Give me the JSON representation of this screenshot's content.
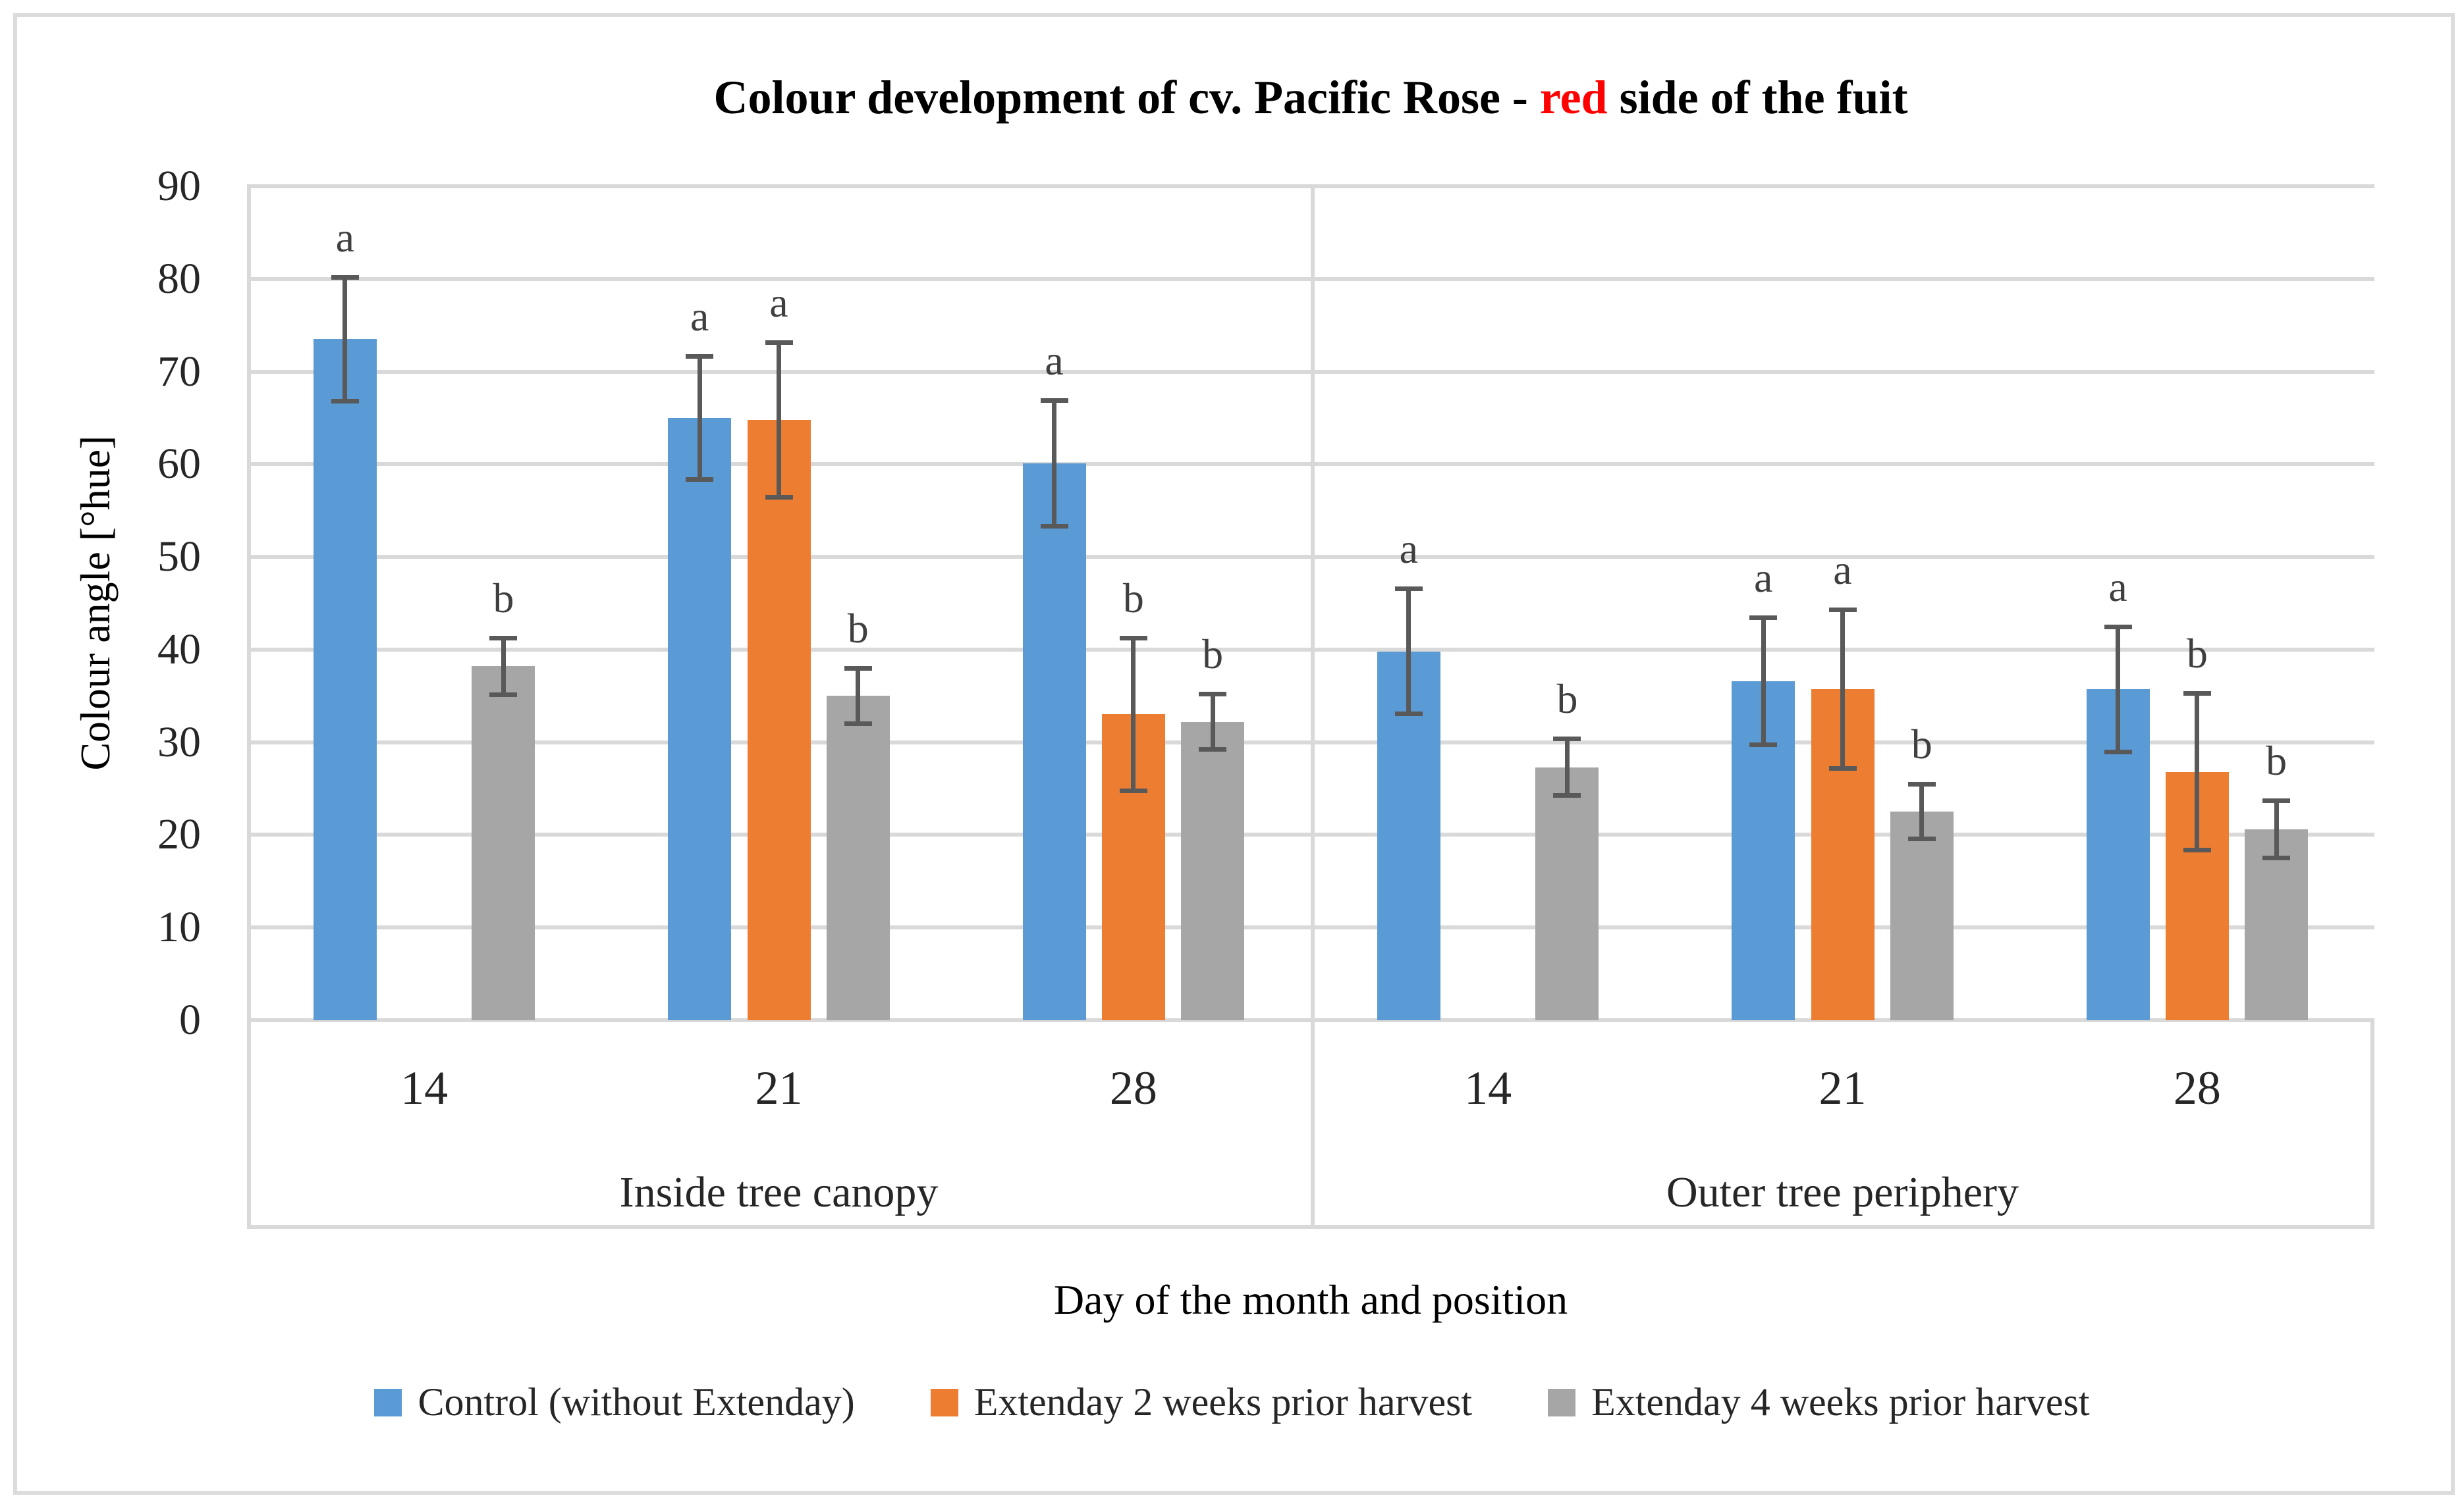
{
  "chart_data": {
    "type": "bar",
    "title": {
      "pre": "Colour development of cv. Pacific Rose - ",
      "red": "red",
      "post": " side of the fuit"
    },
    "ylabel": "Colour angle [°hue]",
    "xlabel": "Day of the month and position",
    "ylim": [
      0,
      90
    ],
    "ytick_step": 10,
    "grid": true,
    "legend_position": "bottom",
    "gridline_color": "#D9D9D9",
    "error_bar_color": "#595959",
    "letter_color": "#3F3F3F",
    "series": [
      {
        "name": "Control (without Extenday)",
        "color": "#5B9BD5"
      },
      {
        "name": "Extenday 2 weeks prior harvest",
        "color": "#ED7D31"
      },
      {
        "name": "Extenday 4 weeks prior harvest",
        "color": "#A6A6A6"
      }
    ],
    "panels": [
      {
        "label": "Inside tree canopy",
        "groups": [
          {
            "day": "14",
            "bars": [
              {
                "series": 0,
                "value": 73.5,
                "error": 6.7,
                "letter": "a"
              },
              {
                "series": 2,
                "value": 38.2,
                "error": 3.1,
                "letter": "b"
              }
            ]
          },
          {
            "day": "21",
            "bars": [
              {
                "series": 0,
                "value": 65.0,
                "error": 6.7,
                "letter": "a"
              },
              {
                "series": 1,
                "value": 64.8,
                "error": 8.4,
                "letter": "a"
              },
              {
                "series": 2,
                "value": 35.0,
                "error": 3.0,
                "letter": "b"
              }
            ]
          },
          {
            "day": "28",
            "bars": [
              {
                "series": 0,
                "value": 60.1,
                "error": 6.8,
                "letter": "a"
              },
              {
                "series": 1,
                "value": 33.0,
                "error": 8.3,
                "letter": "b"
              },
              {
                "series": 2,
                "value": 32.2,
                "error": 3.0,
                "letter": "b"
              }
            ]
          }
        ]
      },
      {
        "label": "Outer tree periphery",
        "groups": [
          {
            "day": "14",
            "bars": [
              {
                "series": 0,
                "value": 39.8,
                "error": 6.8,
                "letter": "a"
              },
              {
                "series": 2,
                "value": 27.3,
                "error": 3.1,
                "letter": "b"
              }
            ]
          },
          {
            "day": "21",
            "bars": [
              {
                "series": 0,
                "value": 36.6,
                "error": 6.9,
                "letter": "a"
              },
              {
                "series": 1,
                "value": 35.7,
                "error": 8.6,
                "letter": "a"
              },
              {
                "series": 2,
                "value": 22.5,
                "error": 3.0,
                "letter": "b"
              }
            ]
          },
          {
            "day": "28",
            "bars": [
              {
                "series": 0,
                "value": 35.7,
                "error": 6.8,
                "letter": "a"
              },
              {
                "series": 1,
                "value": 26.8,
                "error": 8.5,
                "letter": "b"
              },
              {
                "series": 2,
                "value": 20.6,
                "error": 3.1,
                "letter": "b"
              }
            ]
          }
        ]
      }
    ]
  }
}
